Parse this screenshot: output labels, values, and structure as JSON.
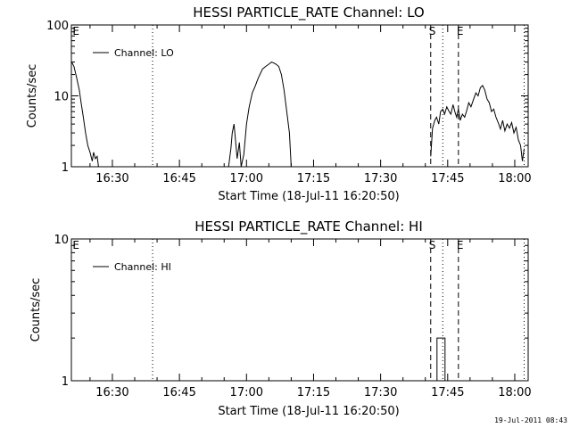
{
  "timestamp": "19-Jul-2011 08:43",
  "chart_data": [
    {
      "type": "line",
      "title": "HESSI PARTICLE_RATE Channel: LO",
      "xlabel": "Start Time (18-Jul-11 16:20:50)",
      "ylabel": "Counts/sec",
      "yscale": "log",
      "ylim": [
        1,
        100
      ],
      "yticks": [
        "1",
        "10",
        "100"
      ],
      "xlim_minutes": [
        980.83,
        1083.0
      ],
      "xticks": [
        {
          "label": "16:30",
          "minutes": 990
        },
        {
          "label": "16:45",
          "minutes": 1005
        },
        {
          "label": "17:00",
          "minutes": 1020
        },
        {
          "label": "17:15",
          "minutes": 1035
        },
        {
          "label": "17:30",
          "minutes": 1050
        },
        {
          "label": "17:45",
          "minutes": 1065
        },
        {
          "label": "18:00",
          "minutes": 1080
        }
      ],
      "legend": {
        "position": "top-left",
        "entries": [
          "Channel: LO"
        ]
      },
      "markers": [
        {
          "label": "E",
          "minutes": 980.9,
          "style": "none"
        },
        {
          "label": "",
          "minutes": 999.0,
          "style": "dotted"
        },
        {
          "label": "S",
          "minutes": 1061.2,
          "style": "dashed"
        },
        {
          "label": "",
          "minutes": 1063.9,
          "style": "dotted"
        },
        {
          "label": "E",
          "minutes": 1067.4,
          "style": "dashed"
        },
        {
          "label": "",
          "minutes": 1082.1,
          "style": "dotted"
        }
      ],
      "series": [
        {
          "name": "Channel: LO",
          "segments": [
            {
              "x": [
                980.9,
                981.4,
                982.0,
                982.6,
                983.0,
                983.5,
                984.0,
                984.5,
                985.0,
                985.5,
                985.8,
                986.2,
                986.6,
                986.9
              ],
              "y": [
                30,
                26,
                18,
                12,
                8,
                5,
                3,
                2,
                1.6,
                1.2,
                1.6,
                1.3,
                1.4,
                1
              ]
            },
            {
              "x": [
                1016.0,
                1016.5,
                1016.8,
                1017.2,
                1017.5,
                1017.9,
                1018.4,
                1018.8,
                1019.4,
                1020.0,
                1020.6,
                1021.3,
                1022.0,
                1022.5,
                1023.0,
                1023.6,
                1024.3,
                1025.0,
                1025.6,
                1026.1,
                1026.6,
                1027.2,
                1027.8,
                1028.4,
                1029.0,
                1029.6,
                1030.0
              ],
              "y": [
                1,
                1.8,
                3,
                4,
                2.5,
                1.3,
                2.2,
                1,
                1.5,
                4,
                7,
                11,
                14,
                17,
                20,
                24,
                26,
                28,
                30,
                29,
                28,
                26,
                20,
                12,
                6,
                3,
                1
              ]
            },
            {
              "x": [
                1061.2,
                1061.6,
                1062.1,
                1062.5,
                1063.0,
                1063.4,
                1063.9,
                1064.3,
                1064.8,
                1065.2,
                1065.7,
                1066.2,
                1066.6,
                1067.0,
                1067.4,
                1067.8,
                1068.3,
                1068.8,
                1069.2,
                1069.7,
                1070.2,
                1070.8,
                1071.3,
                1071.8,
                1072.3,
                1072.8,
                1073.3,
                1073.8,
                1074.3,
                1074.8,
                1075.3,
                1075.8,
                1076.3,
                1076.8,
                1077.3,
                1077.8,
                1078.3,
                1078.8,
                1079.3,
                1079.8,
                1080.3,
                1080.8,
                1081.3,
                1081.7,
                1082.1
              ],
              "y": [
                1.4,
                3.5,
                4.5,
                5,
                4,
                6,
                6.5,
                5.5,
                7,
                6.2,
                5.5,
                7.5,
                6,
                5,
                6.5,
                4.5,
                5.5,
                5,
                6,
                8,
                7,
                9,
                11,
                10,
                13,
                14,
                12,
                9,
                8,
                6,
                6.5,
                5,
                4.2,
                3.4,
                4.5,
                3.2,
                4,
                3.5,
                4.2,
                3,
                3.6,
                2.4,
                2,
                1.2,
                1.8
              ]
            }
          ]
        }
      ]
    },
    {
      "type": "line",
      "title": "HESSI PARTICLE_RATE Channel: HI",
      "xlabel": "Start Time (18-Jul-11 16:20:50)",
      "ylabel": "Counts/sec",
      "yscale": "log",
      "ylim": [
        1,
        10
      ],
      "yticks": [
        "1",
        "10"
      ],
      "xlim_minutes": [
        980.83,
        1083.0
      ],
      "xticks": [
        {
          "label": "16:30",
          "minutes": 990
        },
        {
          "label": "16:45",
          "minutes": 1005
        },
        {
          "label": "17:00",
          "minutes": 1020
        },
        {
          "label": "17:15",
          "minutes": 1035
        },
        {
          "label": "17:30",
          "minutes": 1050
        },
        {
          "label": "17:45",
          "minutes": 1065
        },
        {
          "label": "18:00",
          "minutes": 1080
        }
      ],
      "legend": {
        "position": "top-left",
        "entries": [
          "Channel: HI"
        ]
      },
      "markers": [
        {
          "label": "E",
          "minutes": 980.9,
          "style": "none"
        },
        {
          "label": "",
          "minutes": 999.0,
          "style": "dotted"
        },
        {
          "label": "S",
          "minutes": 1061.2,
          "style": "dashed"
        },
        {
          "label": "",
          "minutes": 1063.9,
          "style": "dotted"
        },
        {
          "label": "E",
          "minutes": 1067.4,
          "style": "dashed"
        },
        {
          "label": "",
          "minutes": 1082.1,
          "style": "dotted"
        }
      ],
      "series": [
        {
          "name": "Channel: HI",
          "segments": [
            {
              "x": [
                1062.6,
                1062.6,
                1064.4,
                1064.4
              ],
              "y": [
                1,
                2,
                2,
                1
              ]
            }
          ]
        }
      ]
    }
  ]
}
